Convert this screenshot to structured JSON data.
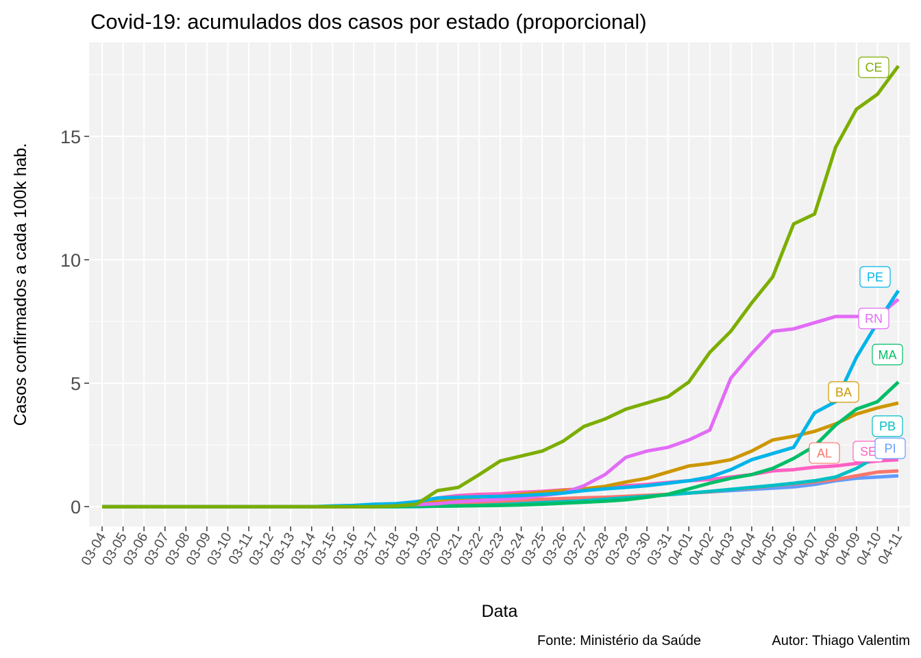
{
  "chart_data": {
    "type": "line",
    "title": "Covid-19: acumulados dos casos por estado (proporcional)",
    "xlabel": "Data",
    "ylabel": "Casos confirmados a cada 100k hab.",
    "caption_left": "Fonte: Ministério da Saúde",
    "caption_right": "Autor: Thiago Valentim",
    "ylim": [
      -0.8,
      18.8
    ],
    "yticks": [
      0,
      5,
      10,
      15
    ],
    "grid": true,
    "legend": "none (direct labels at line ends)",
    "categories": [
      "03-04",
      "03-05",
      "03-06",
      "03-07",
      "03-08",
      "03-09",
      "03-10",
      "03-11",
      "03-12",
      "03-13",
      "03-14",
      "03-15",
      "03-16",
      "03-17",
      "03-18",
      "03-19",
      "03-20",
      "03-21",
      "03-22",
      "03-23",
      "03-24",
      "03-25",
      "03-26",
      "03-27",
      "03-28",
      "03-29",
      "03-30",
      "03-31",
      "04-01",
      "04-02",
      "04-03",
      "04-04",
      "04-05",
      "04-06",
      "04-07",
      "04-08",
      "04-09",
      "04-10",
      "04-11"
    ],
    "series": [
      {
        "name": "CE",
        "color": "#7cae00",
        "values": [
          0,
          0,
          0,
          0,
          0,
          0,
          0,
          0,
          0,
          0,
          0,
          0,
          0,
          0,
          0.03,
          0.1,
          0.65,
          0.78,
          1.3,
          1.85,
          2.05,
          2.25,
          2.65,
          3.25,
          3.55,
          3.95,
          4.2,
          4.45,
          5.05,
          6.25,
          7.1,
          8.25,
          9.3,
          11.45,
          11.85,
          14.55,
          16.1,
          16.7,
          17.85
        ]
      },
      {
        "name": "PE",
        "color": "#00b4e8",
        "values": [
          0,
          0,
          0,
          0,
          0,
          0,
          0,
          0,
          0,
          0,
          0,
          0.03,
          0.05,
          0.1,
          0.12,
          0.2,
          0.35,
          0.38,
          0.4,
          0.42,
          0.45,
          0.5,
          0.55,
          0.65,
          0.72,
          0.78,
          0.85,
          0.95,
          1.05,
          1.2,
          1.5,
          1.9,
          2.15,
          2.4,
          3.8,
          4.25,
          6.05,
          7.45,
          8.75
        ]
      },
      {
        "name": "RN",
        "color": "#e26cf6",
        "values": [
          0,
          0,
          0,
          0,
          0,
          0,
          0,
          0,
          0,
          0,
          0,
          0,
          0,
          0.03,
          0.05,
          0.08,
          0.12,
          0.2,
          0.25,
          0.3,
          0.35,
          0.45,
          0.55,
          0.85,
          1.3,
          2.0,
          2.25,
          2.4,
          2.7,
          3.1,
          5.2,
          6.2,
          7.1,
          7.2,
          7.45,
          7.7,
          7.7,
          7.7,
          8.4
        ]
      },
      {
        "name": "MA",
        "color": "#00be67",
        "values": [
          0,
          0,
          0,
          0,
          0,
          0,
          0,
          0,
          0,
          0,
          0,
          0,
          0,
          0,
          0,
          0.02,
          0.02,
          0.03,
          0.04,
          0.05,
          0.07,
          0.1,
          0.14,
          0.18,
          0.22,
          0.28,
          0.38,
          0.5,
          0.72,
          0.95,
          1.15,
          1.3,
          1.55,
          1.95,
          2.45,
          3.3,
          3.95,
          4.25,
          5.05
        ]
      },
      {
        "name": "BA",
        "color": "#cd9600",
        "values": [
          0,
          0,
          0,
          0,
          0,
          0,
          0,
          0,
          0,
          0,
          0,
          0,
          0.02,
          0.04,
          0.08,
          0.12,
          0.2,
          0.28,
          0.35,
          0.42,
          0.5,
          0.58,
          0.65,
          0.72,
          0.82,
          1.0,
          1.15,
          1.4,
          1.65,
          1.75,
          1.9,
          2.25,
          2.7,
          2.85,
          3.05,
          3.35,
          3.75,
          4.0,
          4.2
        ]
      },
      {
        "name": "PB",
        "color": "#00bfc4",
        "values": [
          0,
          0,
          0,
          0,
          0,
          0,
          0,
          0,
          0,
          0,
          0,
          0,
          0,
          0,
          0,
          0,
          0.02,
          0.03,
          0.05,
          0.08,
          0.12,
          0.16,
          0.2,
          0.24,
          0.3,
          0.36,
          0.42,
          0.48,
          0.55,
          0.62,
          0.7,
          0.78,
          0.86,
          0.95,
          1.05,
          1.2,
          1.55,
          2.05,
          2.15
        ]
      },
      {
        "name": "SE",
        "color": "#ff61c3",
        "values": [
          0,
          0,
          0,
          0,
          0,
          0,
          0,
          0,
          0,
          0,
          0,
          0,
          0.03,
          0.05,
          0.1,
          0.2,
          0.35,
          0.45,
          0.5,
          0.52,
          0.58,
          0.62,
          0.68,
          0.72,
          0.78,
          0.85,
          0.9,
          0.98,
          1.05,
          1.1,
          1.2,
          1.3,
          1.45,
          1.5,
          1.6,
          1.65,
          1.75,
          1.85,
          1.9
        ]
      },
      {
        "name": "AL",
        "color": "#f8766d",
        "values": [
          0,
          0,
          0,
          0,
          0,
          0,
          0,
          0,
          0,
          0,
          0,
          0,
          0,
          0,
          0.02,
          0.04,
          0.08,
          0.12,
          0.18,
          0.22,
          0.26,
          0.3,
          0.33,
          0.36,
          0.38,
          0.42,
          0.46,
          0.5,
          0.55,
          0.6,
          0.7,
          0.75,
          0.85,
          0.92,
          1.0,
          1.1,
          1.25,
          1.4,
          1.45
        ]
      },
      {
        "name": "PI",
        "color": "#619cff",
        "values": [
          0,
          0,
          0,
          0,
          0,
          0,
          0,
          0,
          0,
          0,
          0,
          0,
          0,
          0,
          0.02,
          0.04,
          0.08,
          0.12,
          0.16,
          0.2,
          0.24,
          0.28,
          0.3,
          0.32,
          0.35,
          0.4,
          0.45,
          0.5,
          0.55,
          0.6,
          0.65,
          0.7,
          0.75,
          0.8,
          0.9,
          1.05,
          1.15,
          1.2,
          1.25
        ]
      }
    ]
  }
}
